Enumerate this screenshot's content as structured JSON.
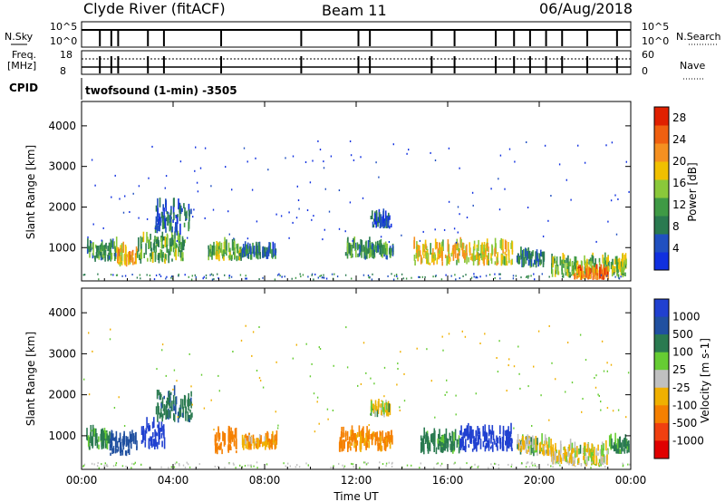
{
  "header": {
    "station": "Clyde River (fitACF)",
    "beam": "Beam 11",
    "date": "06/Aug/2018"
  },
  "strip_nsky": {
    "left_label": "N.Sky",
    "left_ticks": [
      "10^5",
      "10^0"
    ],
    "right_label": "N.Search",
    "right_ticks": [
      "10^5",
      "10^0"
    ]
  },
  "strip_freq": {
    "left_label_top": "Freq.",
    "left_label_bottom": "[MHz]",
    "left_ticks": [
      "18",
      "8"
    ],
    "right_label": "Nave",
    "right_ticks": [
      "60",
      "0"
    ],
    "cpid_label": "CPID",
    "mode_text": "twofsound (1-min) -3505"
  },
  "colors": {
    "power": [
      "#1030e0",
      "#2050c0",
      "#2a7a50",
      "#3f9a45",
      "#8ac83a",
      "#f0c000",
      "#f59020",
      "#f06010",
      "#e02000"
    ],
    "velocity": [
      "#2040d0",
      "#2050a0",
      "#2a7a50",
      "#66cc33",
      "#c0c0c0",
      "#f0b000",
      "#f58000",
      "#f04010",
      "#e00000"
    ]
  },
  "chart_data": [
    {
      "type": "heatmap",
      "panel": "power",
      "x_ticks": [
        "00:00",
        "04:00",
        "08:00",
        "12:00",
        "16:00",
        "20:00",
        "00:00"
      ],
      "xlim_hours": [
        0,
        24
      ],
      "ylabel": "Slant Range [km]",
      "y_ticks": [
        1000,
        2000,
        3000,
        4000
      ],
      "ylim": [
        180,
        4600
      ],
      "colorbar_label": "Power [dB]",
      "colorbar_ticks": [
        4,
        8,
        12,
        16,
        20,
        24,
        28
      ],
      "clim": [
        0,
        30
      ],
      "echo_regions": [
        {
          "t": [
            0.2,
            1.5
          ],
          "r": [
            650,
            1000
          ],
          "v": 10
        },
        {
          "t": [
            1.5,
            2.4
          ],
          "r": [
            500,
            900
          ],
          "v": 20
        },
        {
          "t": [
            2.4,
            4.5
          ],
          "r": [
            600,
            1200
          ],
          "v": 12
        },
        {
          "t": [
            3.2,
            4.8
          ],
          "r": [
            1300,
            2000
          ],
          "v": 6
        },
        {
          "t": [
            5.5,
            7.0
          ],
          "r": [
            650,
            1000
          ],
          "v": 14
        },
        {
          "t": [
            7.0,
            8.5
          ],
          "r": [
            700,
            900
          ],
          "v": 8
        },
        {
          "t": [
            11.5,
            13.6
          ],
          "r": [
            700,
            1000
          ],
          "v": 10
        },
        {
          "t": [
            12.6,
            13.5
          ],
          "r": [
            1450,
            1700
          ],
          "v": 5
        },
        {
          "t": [
            14.5,
            18.8
          ],
          "r": [
            550,
            1000
          ],
          "v": 18
        },
        {
          "t": [
            19.0,
            20.2
          ],
          "r": [
            500,
            800
          ],
          "v": 9
        },
        {
          "t": [
            20.5,
            23.8
          ],
          "r": [
            250,
            650
          ],
          "v": 14
        },
        {
          "t": [
            21.5,
            23.0
          ],
          "r": [
            200,
            350
          ],
          "v": 24
        }
      ]
    },
    {
      "type": "heatmap",
      "panel": "velocity",
      "x_ticks": [
        "00:00",
        "04:00",
        "08:00",
        "12:00",
        "16:00",
        "20:00",
        "00:00"
      ],
      "xlim_hours": [
        0,
        24
      ],
      "xlabel": "Time UT",
      "ylabel": "Slant Range [km]",
      "y_ticks": [
        1000,
        2000,
        3000,
        4000
      ],
      "ylim": [
        180,
        4600
      ],
      "colorbar_label": "Velocity [m s-1]",
      "colorbar_ticks": [
        1000,
        500,
        100,
        25,
        -25,
        -100,
        -500,
        -1000
      ],
      "echo_regions": [
        {
          "t": [
            0.2,
            1.2
          ],
          "r": [
            650,
            1000
          ],
          "v": 100
        },
        {
          "t": [
            1.2,
            2.4
          ],
          "r": [
            500,
            900
          ],
          "v": 300
        },
        {
          "t": [
            2.6,
            3.6
          ],
          "r": [
            650,
            1200
          ],
          "v": 800
        },
        {
          "t": [
            3.2,
            4.8
          ],
          "r": [
            1300,
            2000
          ],
          "v": 150
        },
        {
          "t": [
            5.8,
            6.8
          ],
          "r": [
            550,
            1000
          ],
          "v": -300
        },
        {
          "t": [
            7.0,
            8.5
          ],
          "r": [
            650,
            900
          ],
          "v": -80
        },
        {
          "t": [
            11.2,
            13.6
          ],
          "r": [
            600,
            1000
          ],
          "v": -150
        },
        {
          "t": [
            12.6,
            13.5
          ],
          "r": [
            1450,
            1700
          ],
          "v": 0
        },
        {
          "t": [
            14.8,
            16.5
          ],
          "r": [
            550,
            950
          ],
          "v": 120
        },
        {
          "t": [
            16.5,
            18.8
          ],
          "r": [
            600,
            1050
          ],
          "v": 800
        },
        {
          "t": [
            19.0,
            20.5
          ],
          "r": [
            500,
            800
          ],
          "v": 0
        },
        {
          "t": [
            20.5,
            23.0
          ],
          "r": [
            250,
            650
          ],
          "v": -10
        },
        {
          "t": [
            23.0,
            23.9
          ],
          "r": [
            550,
            800
          ],
          "v": 100
        }
      ]
    }
  ]
}
